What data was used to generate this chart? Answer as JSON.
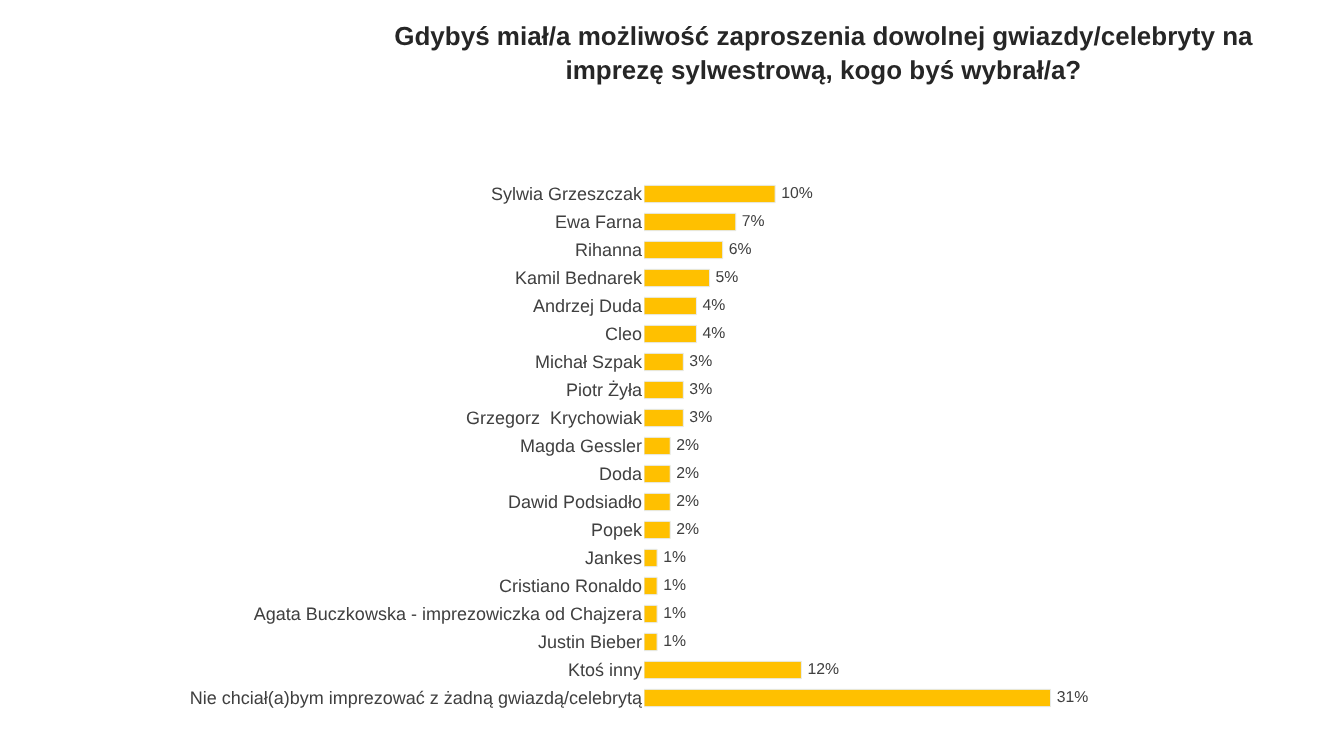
{
  "chart_data": {
    "type": "bar",
    "orientation": "horizontal",
    "title": "Gdybyś miał/a możliwość zaproszenia dowolnej gwiazdy/celebryty na imprezę sylwestrową, kogo byś wybrał/a?",
    "categories": [
      "Sylwia Grzeszczak",
      "Ewa Farna",
      "Rihanna",
      "Kamil Bednarek",
      "Andrzej Duda",
      "Cleo",
      "Michał Szpak",
      "Piotr Żyła",
      "Grzegorz  Krychowiak",
      "Magda Gessler",
      "Doda",
      "Dawid Podsiadło",
      "Popek",
      "Jankes",
      "Cristiano Ronaldo",
      "Agata Buczkowska - imprezowiczka od Chajzera",
      "Justin Bieber",
      "Ktoś inny",
      "Nie chciał(a)bym imprezować z żadną gwiazdą/celebrytą"
    ],
    "values": [
      10,
      7,
      6,
      5,
      4,
      4,
      3,
      3,
      3,
      2,
      2,
      2,
      2,
      1,
      1,
      1,
      1,
      12,
      31
    ],
    "value_labels": [
      "10%",
      "7%",
      "6%",
      "5%",
      "4%",
      "4%",
      "3%",
      "3%",
      "3%",
      "2%",
      "2%",
      "2%",
      "2%",
      "1%",
      "1%",
      "1%",
      "1%",
      "12%",
      "31%"
    ],
    "color": "#ffc000"
  }
}
